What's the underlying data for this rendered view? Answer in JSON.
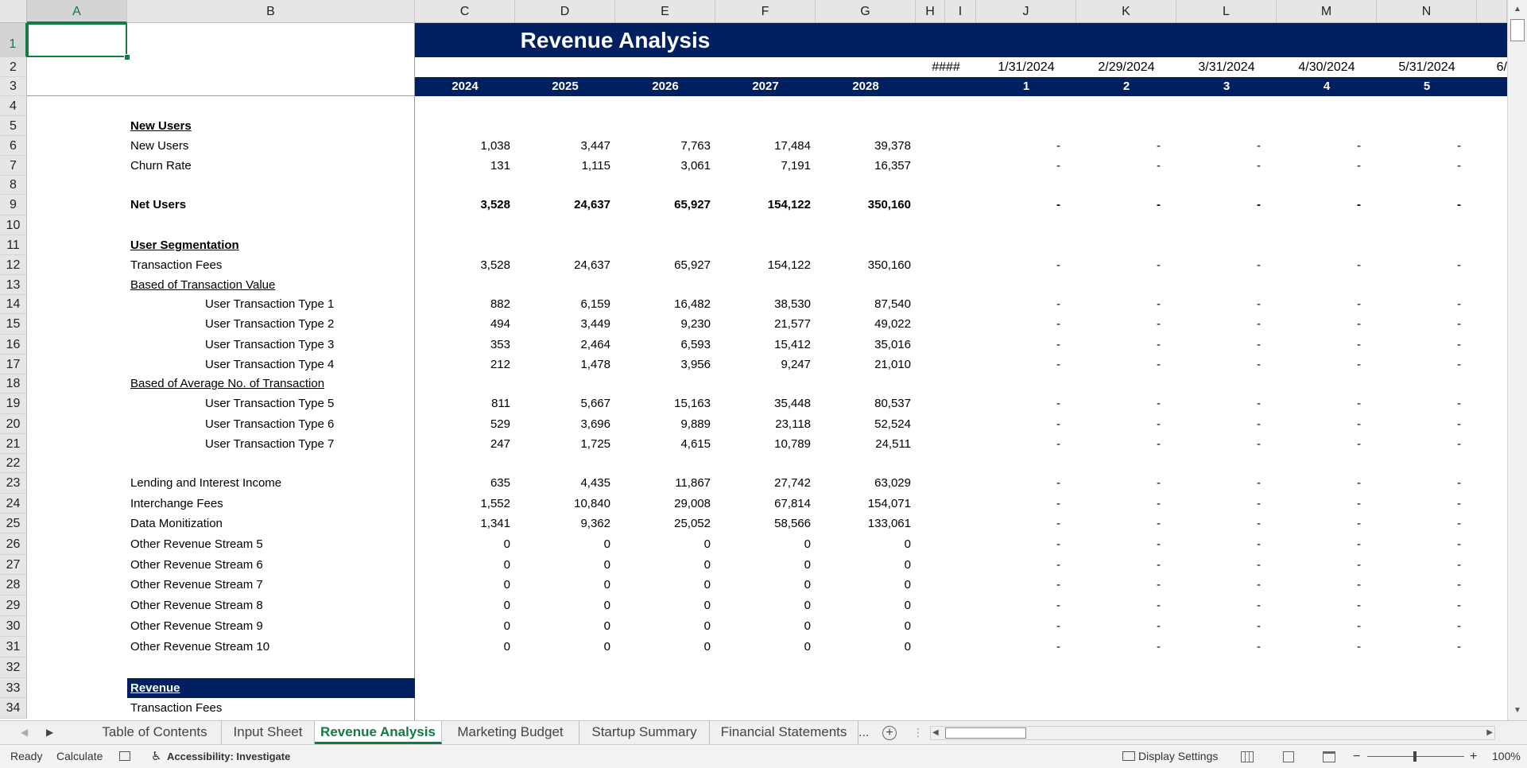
{
  "columns": [
    "A",
    "B",
    "C",
    "D",
    "E",
    "F",
    "G",
    "H",
    "I",
    "J",
    "K",
    "L",
    "M",
    "N"
  ],
  "selected_column": "A",
  "selected_row": "1",
  "title": "Revenue Analysis",
  "dates_row": [
    "####",
    "1/31/2024",
    "2/29/2024",
    "3/31/2024",
    "4/30/2024",
    "5/31/2024",
    "6/"
  ],
  "years": [
    "2024",
    "2025",
    "2026",
    "2027",
    "2028"
  ],
  "period_numbers": [
    "1",
    "2",
    "3",
    "4",
    "5"
  ],
  "rows": [
    {
      "n": "4",
      "label": "",
      "style": "",
      "indent": false,
      "values": [
        "",
        "",
        "",
        "",
        ""
      ],
      "monthly": ""
    },
    {
      "n": "5",
      "label": "New Users",
      "style": "bold ul",
      "indent": false,
      "values": [
        "",
        "",
        "",
        "",
        ""
      ],
      "monthly": ""
    },
    {
      "n": "6",
      "label": "New Users",
      "style": "",
      "indent": false,
      "values": [
        "1,038",
        "3,447",
        "7,763",
        "17,484",
        "39,378"
      ],
      "monthly": "-"
    },
    {
      "n": "7",
      "label": "Churn Rate",
      "style": "",
      "indent": false,
      "values": [
        "131",
        "1,115",
        "3,061",
        "7,191",
        "16,357"
      ],
      "monthly": "-"
    },
    {
      "n": "8",
      "label": "",
      "style": "",
      "indent": false,
      "values": [
        "",
        "",
        "",
        "",
        ""
      ],
      "monthly": ""
    },
    {
      "n": "9",
      "label": "Net Users",
      "style": "bold",
      "indent": false,
      "values": [
        "3,528",
        "24,637",
        "65,927",
        "154,122",
        "350,160"
      ],
      "monthly": "-"
    },
    {
      "n": "10",
      "label": "",
      "style": "",
      "indent": false,
      "values": [
        "",
        "",
        "",
        "",
        ""
      ],
      "monthly": ""
    },
    {
      "n": "11",
      "label": "User Segmentation",
      "style": "bold ul",
      "indent": false,
      "values": [
        "",
        "",
        "",
        "",
        ""
      ],
      "monthly": ""
    },
    {
      "n": "12",
      "label": "Transaction Fees",
      "style": "",
      "indent": false,
      "values": [
        "3,528",
        "24,637",
        "65,927",
        "154,122",
        "350,160"
      ],
      "monthly": "-"
    },
    {
      "n": "13",
      "label": "Based of Transaction Value",
      "style": "ul",
      "indent": false,
      "values": [
        "",
        "",
        "",
        "",
        ""
      ],
      "monthly": ""
    },
    {
      "n": "14",
      "label": "User Transaction Type 1",
      "style": "",
      "indent": true,
      "values": [
        "882",
        "6,159",
        "16,482",
        "38,530",
        "87,540"
      ],
      "monthly": "-"
    },
    {
      "n": "15",
      "label": "User Transaction Type 2",
      "style": "",
      "indent": true,
      "values": [
        "494",
        "3,449",
        "9,230",
        "21,577",
        "49,022"
      ],
      "monthly": "-"
    },
    {
      "n": "16",
      "label": "User Transaction Type 3",
      "style": "",
      "indent": true,
      "values": [
        "353",
        "2,464",
        "6,593",
        "15,412",
        "35,016"
      ],
      "monthly": "-"
    },
    {
      "n": "17",
      "label": "User Transaction Type 4",
      "style": "",
      "indent": true,
      "values": [
        "212",
        "1,478",
        "3,956",
        "9,247",
        "21,010"
      ],
      "monthly": "-"
    },
    {
      "n": "18",
      "label": "Based of Average No. of Transaction",
      "style": "ul",
      "indent": false,
      "values": [
        "",
        "",
        "",
        "",
        ""
      ],
      "monthly": ""
    },
    {
      "n": "19",
      "label": "User Transaction Type 5",
      "style": "",
      "indent": true,
      "values": [
        "811",
        "5,667",
        "15,163",
        "35,448",
        "80,537"
      ],
      "monthly": "-"
    },
    {
      "n": "20",
      "label": "User Transaction Type 6",
      "style": "",
      "indent": true,
      "values": [
        "529",
        "3,696",
        "9,889",
        "23,118",
        "52,524"
      ],
      "monthly": "-"
    },
    {
      "n": "21",
      "label": "User Transaction Type 7",
      "style": "",
      "indent": true,
      "values": [
        "247",
        "1,725",
        "4,615",
        "10,789",
        "24,511"
      ],
      "monthly": "-"
    },
    {
      "n": "22",
      "label": "",
      "style": "",
      "indent": false,
      "values": [
        "",
        "",
        "",
        "",
        ""
      ],
      "monthly": ""
    },
    {
      "n": "23",
      "label": "Lending and Interest Income",
      "style": "",
      "indent": false,
      "values": [
        "635",
        "4,435",
        "11,867",
        "27,742",
        "63,029"
      ],
      "monthly": "-"
    },
    {
      "n": "24",
      "label": "Interchange Fees",
      "style": "",
      "indent": false,
      "values": [
        "1,552",
        "10,840",
        "29,008",
        "67,814",
        "154,071"
      ],
      "monthly": "-"
    },
    {
      "n": "25",
      "label": "Data Monitization",
      "style": "",
      "indent": false,
      "values": [
        "1,341",
        "9,362",
        "25,052",
        "58,566",
        "133,061"
      ],
      "monthly": "-"
    },
    {
      "n": "26",
      "label": "Other Revenue Stream 5",
      "style": "",
      "indent": false,
      "values": [
        "0",
        "0",
        "0",
        "0",
        "0"
      ],
      "monthly": "-"
    },
    {
      "n": "27",
      "label": "Other Revenue Stream 6",
      "style": "",
      "indent": false,
      "values": [
        "0",
        "0",
        "0",
        "0",
        "0"
      ],
      "monthly": "-"
    },
    {
      "n": "28",
      "label": "Other Revenue Stream 7",
      "style": "",
      "indent": false,
      "values": [
        "0",
        "0",
        "0",
        "0",
        "0"
      ],
      "monthly": "-"
    },
    {
      "n": "29",
      "label": "Other Revenue Stream 8",
      "style": "",
      "indent": false,
      "values": [
        "0",
        "0",
        "0",
        "0",
        "0"
      ],
      "monthly": "-"
    },
    {
      "n": "30",
      "label": "Other Revenue Stream 9",
      "style": "",
      "indent": false,
      "values": [
        "0",
        "0",
        "0",
        "0",
        "0"
      ],
      "monthly": "-"
    },
    {
      "n": "31",
      "label": "Other Revenue Stream 10",
      "style": "",
      "indent": false,
      "values": [
        "0",
        "0",
        "0",
        "0",
        "0"
      ],
      "monthly": "-"
    },
    {
      "n": "32",
      "label": "",
      "style": "",
      "indent": false,
      "values": [
        "",
        "",
        "",
        "",
        ""
      ],
      "monthly": ""
    },
    {
      "n": "33",
      "label": "Revenue",
      "style": "bold ul band",
      "indent": false,
      "values": [
        "",
        "",
        "",
        "",
        ""
      ],
      "monthly": ""
    },
    {
      "n": "34",
      "label": "Transaction Fees",
      "style": "",
      "indent": false,
      "values": [
        "",
        "",
        "",
        "",
        ""
      ],
      "monthly": ""
    }
  ],
  "header_row_numbers": [
    "1",
    "2",
    "3"
  ],
  "tabs": {
    "items": [
      "Table of Contents",
      "Input Sheet",
      "Revenue Analysis",
      "Marketing Budget",
      "Startup Summary",
      "Financial Statements"
    ],
    "active": "Revenue Analysis",
    "more": "..."
  },
  "status": {
    "ready": "Ready",
    "calculate": "Calculate",
    "accessibility": "Accessibility: Investigate",
    "display_settings": "Display Settings",
    "zoom": "100%"
  },
  "colors": {
    "header_band": "#002060",
    "excel_green": "#107c41"
  }
}
